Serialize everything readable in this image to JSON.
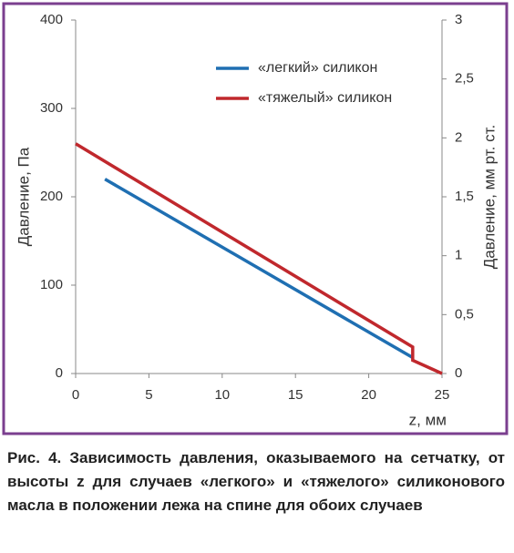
{
  "chart_data": {
    "type": "line",
    "ylabel": "Давление, Па",
    "y2label": "Давление, мм рт. ст.",
    "xlabel": "z, мм",
    "caption": "Рис. 4. Зависимость давления, оказываемого на сетчатку, от высоты z для случаев «легкого» и «тяжелого» силиконового масла в положении лежа на спине для обоих случаев",
    "xlim": [
      0,
      25
    ],
    "xticks": [
      0,
      5,
      10,
      15,
      20,
      25
    ],
    "ylim": [
      0,
      400
    ],
    "yticks": [
      0,
      100,
      200,
      300,
      400
    ],
    "y2lim": [
      0,
      3
    ],
    "y2ticks": [
      0,
      {
        "value": 0.5,
        "label": "0,5"
      },
      1,
      {
        "value": 1.5,
        "label": "1,5"
      },
      2,
      {
        "value": 2.5,
        "label": "2,5"
      },
      3
    ],
    "grid": false,
    "legend": "top-right",
    "series": [
      {
        "name": "«легкий» силикон",
        "color": "#1f6fb2",
        "x": [
          2,
          23
        ],
        "values": [
          220,
          18
        ]
      },
      {
        "name": "«тяжелый» силикон",
        "color": "#c0282d",
        "x": [
          0,
          23,
          23,
          25
        ],
        "values": [
          260,
          30,
          15,
          0
        ]
      }
    ]
  }
}
